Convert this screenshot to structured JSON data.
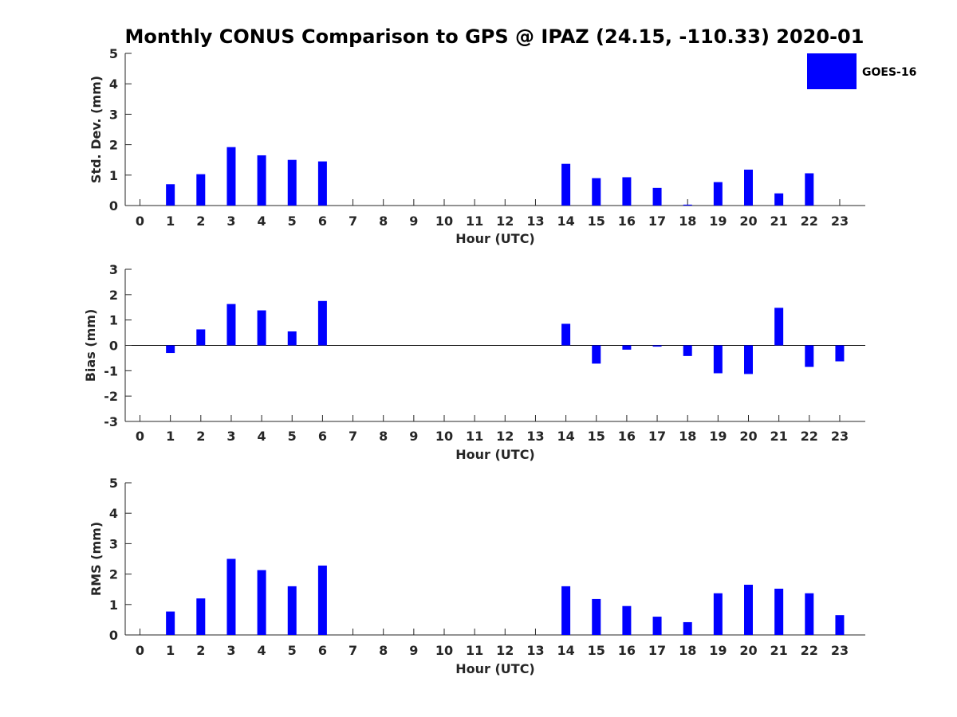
{
  "figure": {
    "title": "Monthly CONUS Comparison to GPS @ IPAZ (24.15, -110.33) 2020-01",
    "legend": {
      "label": "GOES-16",
      "color": "#0000ff",
      "placement": "top-right"
    },
    "bar_color": "#0000ff"
  },
  "chart_data": [
    {
      "type": "bar",
      "name": "stddev",
      "xlabel": "Hour (UTC)",
      "ylabel": "Std. Dev. (mm)",
      "ylim": [
        0,
        5
      ],
      "yticks": [
        0,
        1,
        2,
        3,
        4,
        5
      ],
      "categories": [
        "0",
        "1",
        "2",
        "3",
        "4",
        "5",
        "6",
        "7",
        "8",
        "9",
        "10",
        "11",
        "12",
        "13",
        "14",
        "15",
        "16",
        "17",
        "18",
        "19",
        "20",
        "21",
        "22",
        "23"
      ],
      "series": [
        {
          "name": "GOES-16",
          "values": [
            null,
            0.7,
            1.03,
            1.92,
            1.65,
            1.5,
            1.45,
            null,
            null,
            null,
            null,
            null,
            null,
            null,
            1.37,
            0.9,
            0.93,
            0.58,
            0.03,
            0.77,
            1.18,
            0.4,
            1.06,
            null
          ]
        }
      ]
    },
    {
      "type": "bar",
      "name": "bias",
      "xlabel": "Hour (UTC)",
      "ylabel": "Bias (mm)",
      "ylim": [
        -3,
        3
      ],
      "yticks": [
        -3,
        -2,
        -1,
        0,
        1,
        2,
        3
      ],
      "categories": [
        "0",
        "1",
        "2",
        "3",
        "4",
        "5",
        "6",
        "7",
        "8",
        "9",
        "10",
        "11",
        "12",
        "13",
        "14",
        "15",
        "16",
        "17",
        "18",
        "19",
        "20",
        "21",
        "22",
        "23"
      ],
      "series": [
        {
          "name": "GOES-16",
          "values": [
            null,
            -0.3,
            0.63,
            1.63,
            1.38,
            0.55,
            1.75,
            null,
            null,
            null,
            null,
            null,
            null,
            null,
            0.85,
            -0.72,
            -0.17,
            -0.05,
            -0.42,
            -1.1,
            -1.13,
            1.48,
            -0.85,
            -0.63
          ]
        }
      ]
    },
    {
      "type": "bar",
      "name": "rms",
      "xlabel": "Hour (UTC)",
      "ylabel": "RMS (mm)",
      "ylim": [
        0,
        5
      ],
      "yticks": [
        0,
        1,
        2,
        3,
        4,
        5
      ],
      "categories": [
        "0",
        "1",
        "2",
        "3",
        "4",
        "5",
        "6",
        "7",
        "8",
        "9",
        "10",
        "11",
        "12",
        "13",
        "14",
        "15",
        "16",
        "17",
        "18",
        "19",
        "20",
        "21",
        "22",
        "23"
      ],
      "series": [
        {
          "name": "GOES-16",
          "values": [
            null,
            0.77,
            1.2,
            2.5,
            2.13,
            1.6,
            2.28,
            null,
            null,
            null,
            null,
            null,
            null,
            null,
            1.6,
            1.18,
            0.95,
            0.6,
            0.42,
            1.37,
            1.65,
            1.52,
            1.37,
            0.65
          ]
        }
      ]
    }
  ]
}
